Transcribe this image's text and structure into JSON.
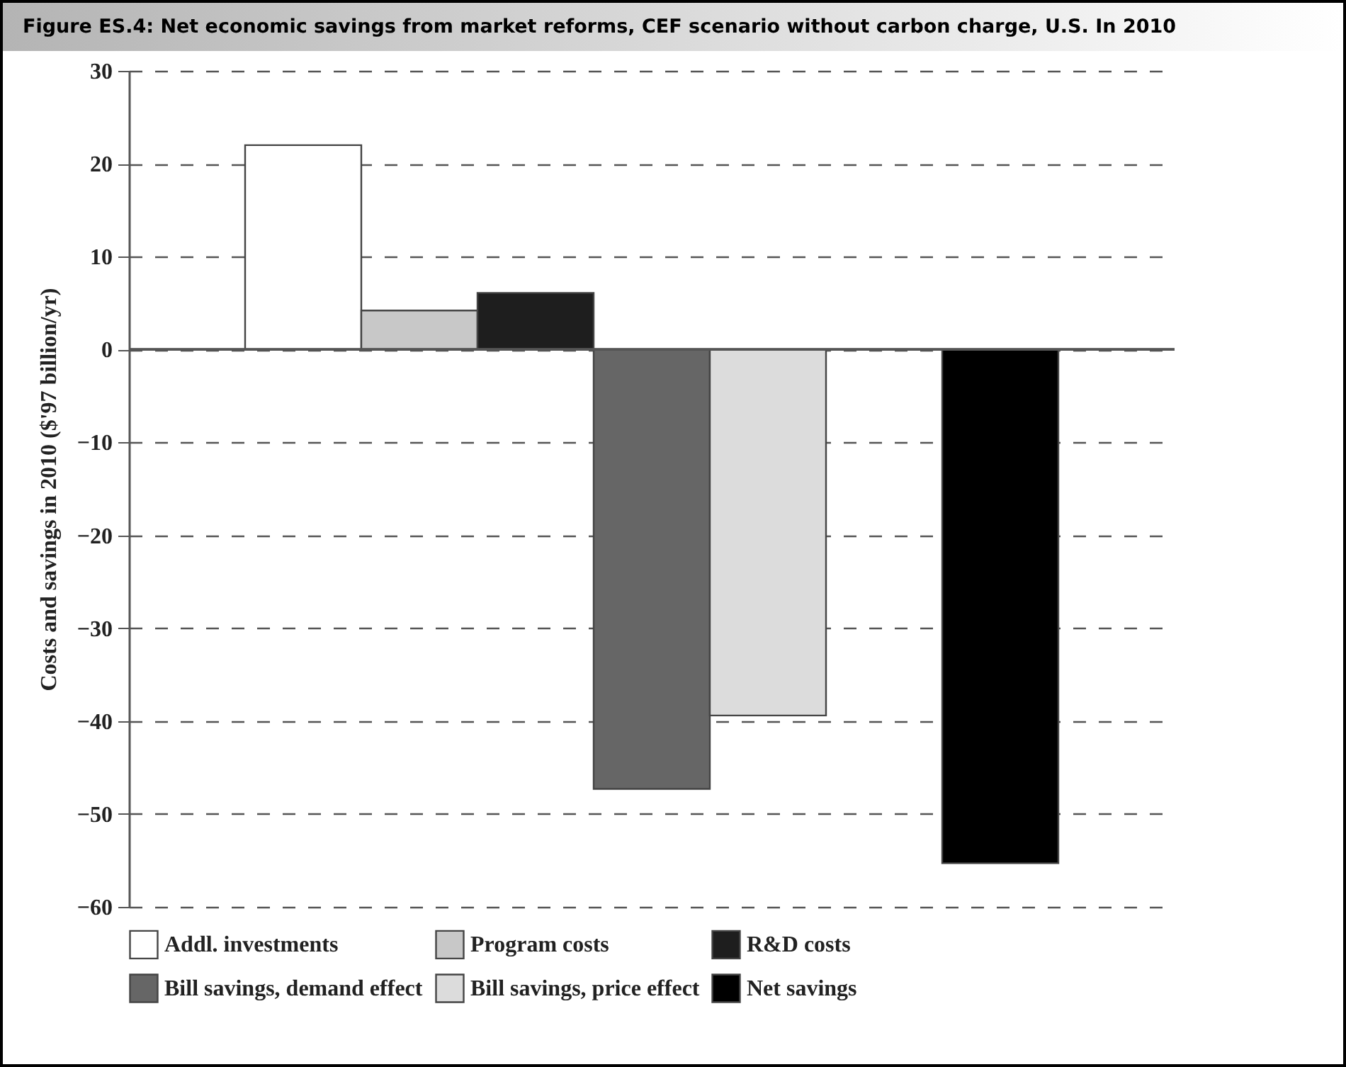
{
  "chart_data": {
    "type": "bar",
    "title": "Figure ES.4: Net economic savings from market reforms, CEF scenario without carbon charge, U.S. In 2010",
    "ylabel": "Costs and savings in 2010 ($'97 billion/yr)",
    "categories": [
      null,
      null,
      null,
      null,
      null,
      null,
      null,
      null,
      null
    ],
    "series": [
      {
        "name": "Addl. investments",
        "color": "#ffffff",
        "values": [
          null,
          22,
          null,
          null,
          null,
          null,
          null,
          null,
          null
        ]
      },
      {
        "name": "Program costs",
        "color": "#c8c8c8",
        "values": [
          null,
          null,
          4.2,
          null,
          null,
          null,
          null,
          null,
          null
        ]
      },
      {
        "name": "R&D costs",
        "color": "#1e1e1e",
        "values": [
          null,
          null,
          null,
          6.1,
          null,
          null,
          null,
          null,
          null
        ]
      },
      {
        "name": "Bill savings, demand effect",
        "color": "#666666",
        "values": [
          null,
          null,
          null,
          null,
          -47.3,
          null,
          null,
          null,
          null
        ]
      },
      {
        "name": "Bill savings, price effect",
        "color": "#dcdcdc",
        "values": [
          null,
          null,
          null,
          null,
          null,
          -39.4,
          null,
          null,
          null
        ]
      },
      {
        "name": "Net savings",
        "color": "#000000",
        "values": [
          null,
          null,
          null,
          null,
          null,
          null,
          null,
          -55.3,
          null
        ]
      }
    ],
    "ylim": [
      -60,
      30
    ],
    "yticks": [
      -60,
      -50,
      -40,
      -30,
      -20,
      -10,
      0,
      10,
      20,
      30
    ],
    "grid": "y",
    "legend": "bottom"
  }
}
